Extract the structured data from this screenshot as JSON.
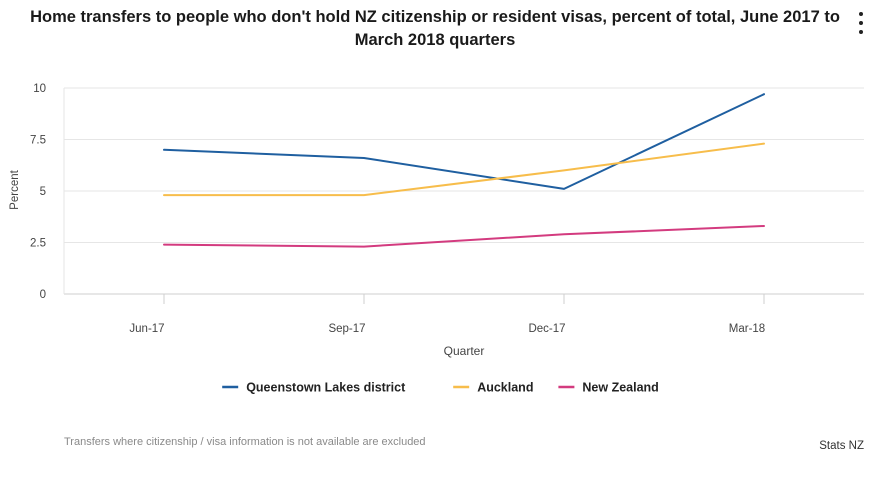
{
  "chart_data": {
    "type": "line",
    "title": "Home transfers to people who don't hold NZ citizenship or resident visas, percent of total, June 2017 to March 2018 quarters",
    "xlabel": "Quarter",
    "ylabel": "Percent",
    "categories": [
      "Jun-17",
      "Sep-17",
      "Dec-17",
      "Mar-18"
    ],
    "ylim": [
      0,
      10
    ],
    "yticks": [
      0,
      2.5,
      5,
      7.5,
      10
    ],
    "ytick_labels": [
      "0",
      "2.5",
      "5",
      "7.5",
      "10"
    ],
    "grid": true,
    "legend_position": "bottom",
    "series": [
      {
        "name": "Queenstown Lakes district",
        "color": "#1f5fa0",
        "values": [
          7.0,
          6.6,
          5.1,
          9.7
        ]
      },
      {
        "name": "Auckland",
        "color": "#f7bd4b",
        "values": [
          4.8,
          4.8,
          6.0,
          7.3
        ]
      },
      {
        "name": "New Zealand",
        "color": "#d33b7f",
        "values": [
          2.4,
          2.3,
          2.9,
          3.3
        ]
      }
    ]
  },
  "footnote": "Transfers where citizenship / visa information is not available are excluded",
  "credit": "Stats NZ",
  "menu_icon": "more-vertical-icon"
}
